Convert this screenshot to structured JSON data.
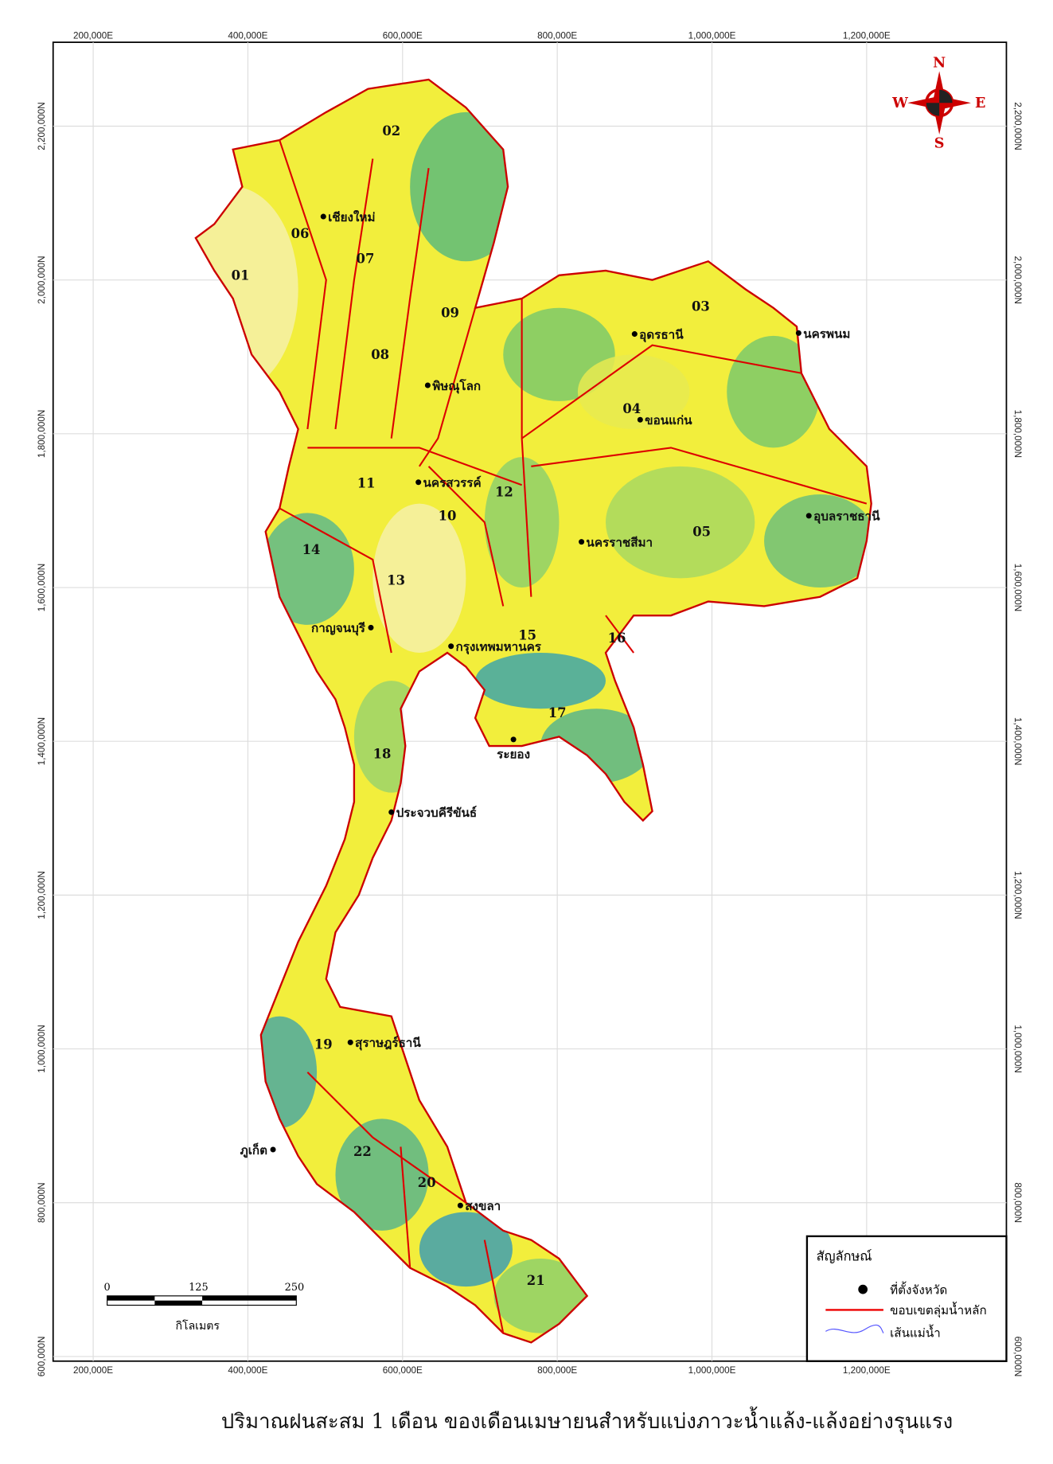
{
  "map": {
    "easting_labels": [
      "200,000E",
      "400,000E",
      "600,000E",
      "800,000E",
      "1,000,000E",
      "1,200,000E"
    ],
    "northing_labels": [
      "2,200,000N",
      "2,000,000N",
      "1,800,000N",
      "1,600,000N",
      "1,400,000N",
      "1,200,000N",
      "1,000,000N",
      "800,000N",
      "600,000N"
    ],
    "basins": [
      "01",
      "02",
      "03",
      "04",
      "05",
      "06",
      "07",
      "08",
      "09",
      "10",
      "11",
      "12",
      "13",
      "14",
      "15",
      "16",
      "17",
      "18",
      "19",
      "20",
      "21",
      "22"
    ],
    "provinces": [
      "เชียงใหม่",
      "อุดรธานี",
      "นครพนม",
      "พิษณุโลก",
      "ขอนแก่น",
      "นครสวรรค์",
      "อุบลราชธานี",
      "นครราชสีมา",
      "กาญจนบุรี",
      "กรุงเทพมหานคร",
      "ระยอง",
      "ประจวบคีรีขันธ์",
      "สุราษฎร์ธานี",
      "ภูเก็ต",
      "สงขลา"
    ],
    "compass": {
      "n": "N",
      "e": "E",
      "s": "S",
      "w": "W"
    },
    "legend": {
      "title": "สัญลักษณ์",
      "items": [
        "ที่ตั้งจังหวัด",
        "ขอบเขตลุ่มน้ำหลัก",
        "เส้นแม่น้ำ"
      ]
    },
    "scale_bar": {
      "ticks": [
        "0",
        "125",
        "250"
      ],
      "unit": "กิโลเมตร"
    }
  },
  "caption": "ปริมาณฝนสะสม 1 เดือน ของเดือนเมษายนสำหรับแบ่งภาวะน้ำแล้ง-แล้งอย่างรุนแรง"
}
